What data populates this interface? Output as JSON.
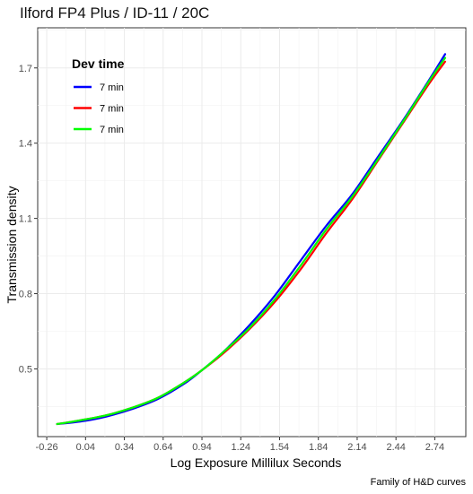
{
  "chart_data": {
    "type": "line",
    "title": "Ilford FP4 Plus / ID-11 / 20C",
    "xlabel": "Log Exposure Millilux Seconds",
    "ylabel": "Transmission density",
    "caption": "Family of H&D curves",
    "legend": {
      "title": "Dev time",
      "position": "top-left"
    },
    "xlim": [
      -0.33,
      2.98
    ],
    "ylim": [
      0.23,
      1.86
    ],
    "xticks": [
      -0.26,
      0.04,
      0.34,
      0.64,
      0.94,
      1.24,
      1.54,
      1.84,
      2.14,
      2.44,
      2.74
    ],
    "xtick_labels": [
      "-0.26",
      "0.04",
      "0.34",
      "0.64",
      "0.94",
      "1.24",
      "1.54",
      "1.84",
      "2.14",
      "2.44",
      "2.74"
    ],
    "yticks": [
      0.5,
      0.8,
      1.1,
      1.4,
      1.7
    ],
    "ytick_labels": [
      "0.5",
      "0.8",
      "1.1",
      "1.4",
      "1.7"
    ],
    "grid": true,
    "series": [
      {
        "name": "7 min",
        "color": "#0000ff",
        "x": [
          -0.18,
          0.0,
          0.2,
          0.4,
          0.6,
          0.8,
          0.94,
          1.1,
          1.3,
          1.5,
          1.7,
          1.9,
          2.1,
          2.3,
          2.5,
          2.7,
          2.82
        ],
        "y": [
          0.28,
          0.29,
          0.31,
          0.34,
          0.38,
          0.44,
          0.495,
          0.565,
          0.67,
          0.79,
          0.93,
          1.07,
          1.195,
          1.345,
          1.495,
          1.655,
          1.755
        ]
      },
      {
        "name": "7 min",
        "color": "#ff0000",
        "x": [
          -0.18,
          0.0,
          0.2,
          0.4,
          0.6,
          0.8,
          0.94,
          1.1,
          1.3,
          1.5,
          1.7,
          1.9,
          2.1,
          2.3,
          2.5,
          2.7,
          2.82
        ],
        "y": [
          0.28,
          0.295,
          0.315,
          0.345,
          0.385,
          0.445,
          0.495,
          0.56,
          0.655,
          0.765,
          0.895,
          1.04,
          1.175,
          1.33,
          1.485,
          1.64,
          1.725
        ]
      },
      {
        "name": "7 min",
        "color": "#00ff00",
        "x": [
          -0.18,
          0.0,
          0.2,
          0.4,
          0.6,
          0.8,
          0.94,
          1.1,
          1.3,
          1.5,
          1.7,
          1.9,
          2.1,
          2.3,
          2.5,
          2.7,
          2.82
        ],
        "y": [
          0.28,
          0.295,
          0.315,
          0.345,
          0.385,
          0.445,
          0.495,
          0.565,
          0.66,
          0.775,
          0.91,
          1.055,
          1.185,
          1.335,
          1.49,
          1.65,
          1.74
        ]
      }
    ]
  }
}
